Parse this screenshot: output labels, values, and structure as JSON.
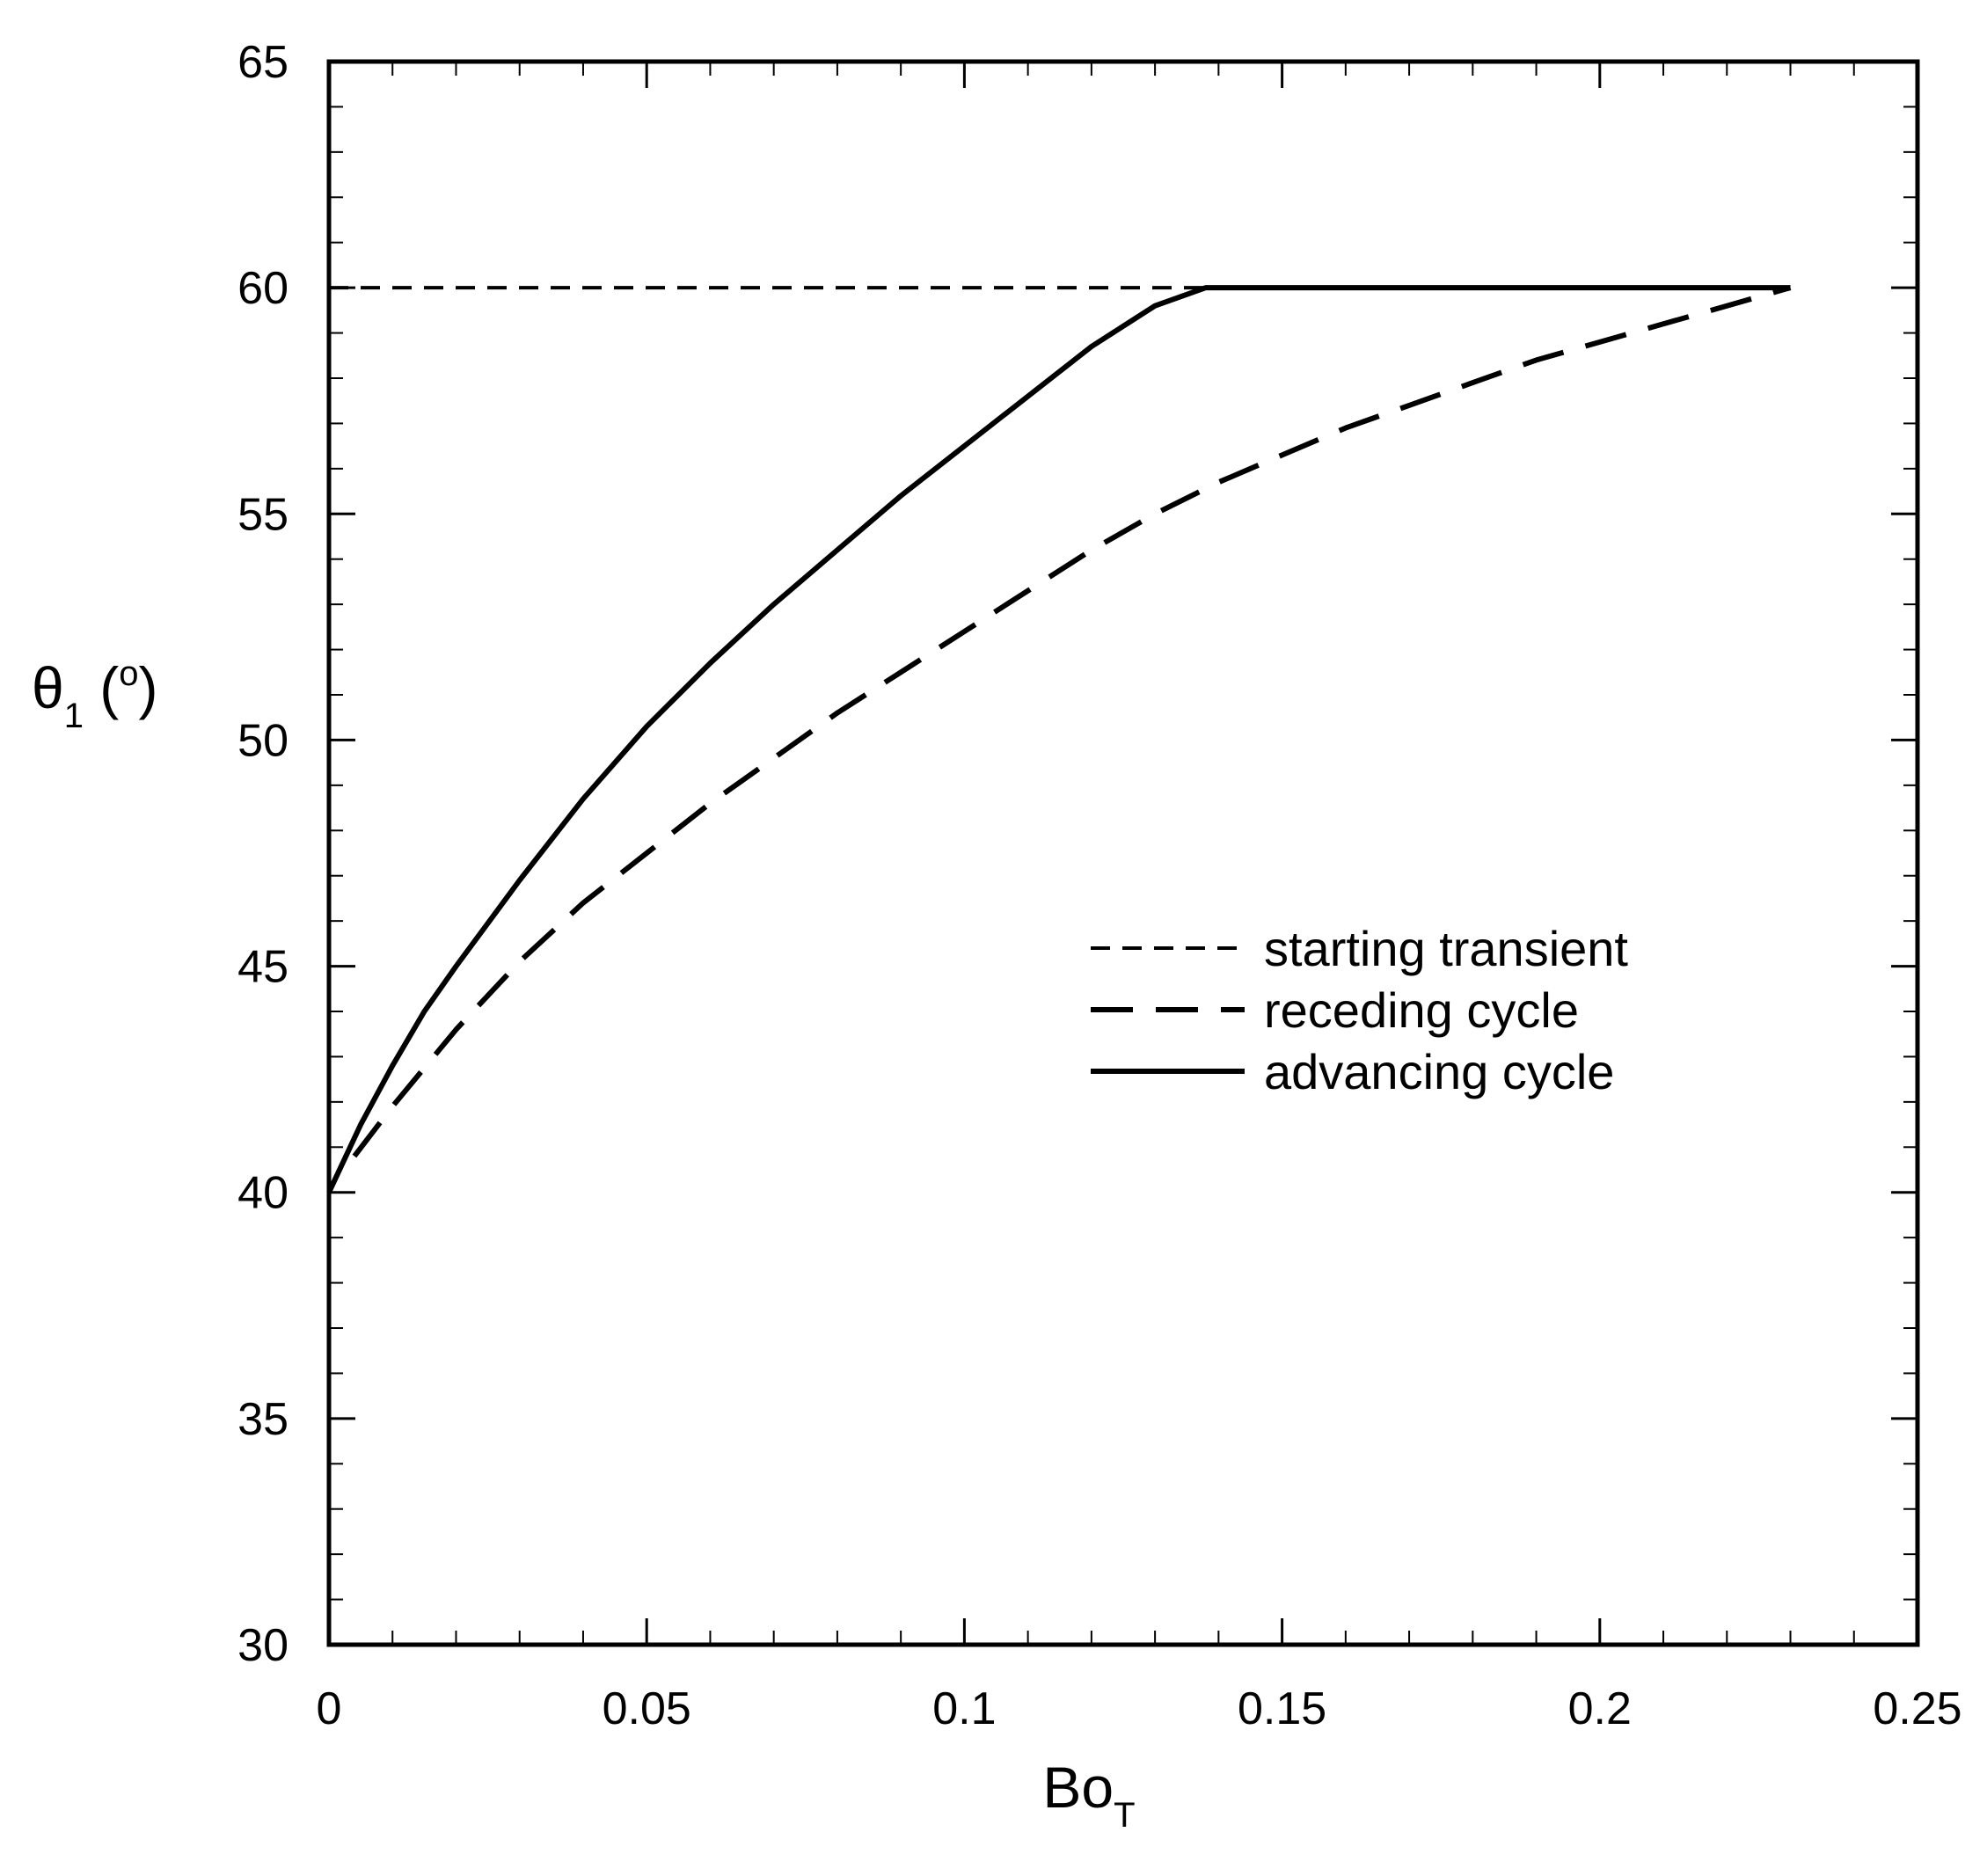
{
  "chart_data": {
    "type": "line",
    "title": "",
    "xlabel_main": "Bo",
    "xlabel_sub": "T",
    "ylabel_main": "θ",
    "ylabel_sub": "1",
    "ylabel_unit_open": " (",
    "ylabel_unit_deg": "o",
    "ylabel_unit_close": ")",
    "xlim": [
      0,
      0.25
    ],
    "ylim": [
      30,
      65
    ],
    "xticks": [
      0,
      0.05,
      0.1,
      0.15,
      0.2,
      0.25
    ],
    "xtick_labels": [
      "0",
      "0.05",
      "0.1",
      "0.15",
      "0.2",
      "0.25"
    ],
    "yticks": [
      30,
      35,
      40,
      45,
      50,
      55,
      60,
      65
    ],
    "ytick_labels": [
      "30",
      "35",
      "40",
      "45",
      "50",
      "55",
      "60",
      "65"
    ],
    "x_minor_step": 0.01,
    "y_minor_step": 1,
    "grid": false,
    "legend_position": "center-right",
    "series": [
      {
        "name": "starting transient",
        "style": "short-dash",
        "x": [
          0,
          0.138
        ],
        "y": [
          60,
          60
        ]
      },
      {
        "name": "receding cycle",
        "style": "long-dash",
        "x": [
          0.004,
          0.01,
          0.02,
          0.03,
          0.04,
          0.05,
          0.06,
          0.07,
          0.08,
          0.09,
          0.1,
          0.11,
          0.12,
          0.13,
          0.14,
          0.15,
          0.16,
          0.17,
          0.18,
          0.19,
          0.2,
          0.21,
          0.22,
          0.23
        ],
        "y": [
          40.8,
          41.9,
          43.6,
          45.1,
          46.4,
          47.5,
          48.6,
          49.6,
          50.6,
          51.5,
          52.4,
          53.3,
          54.2,
          55.0,
          55.7,
          56.3,
          56.9,
          57.4,
          57.9,
          58.4,
          58.8,
          59.2,
          59.6,
          60.0
        ]
      },
      {
        "name": "advancing cycle",
        "style": "solid",
        "x": [
          0,
          0.005,
          0.01,
          0.015,
          0.02,
          0.03,
          0.04,
          0.05,
          0.06,
          0.07,
          0.08,
          0.09,
          0.1,
          0.11,
          0.12,
          0.13,
          0.138,
          0.15,
          0.17,
          0.19,
          0.21,
          0.23
        ],
        "y": [
          40.0,
          41.5,
          42.8,
          44.0,
          45.0,
          46.9,
          48.7,
          50.3,
          51.7,
          53.0,
          54.2,
          55.4,
          56.5,
          57.6,
          58.7,
          59.6,
          60.0,
          60.0,
          60.0,
          60.0,
          60.0,
          60.0
        ]
      }
    ]
  }
}
